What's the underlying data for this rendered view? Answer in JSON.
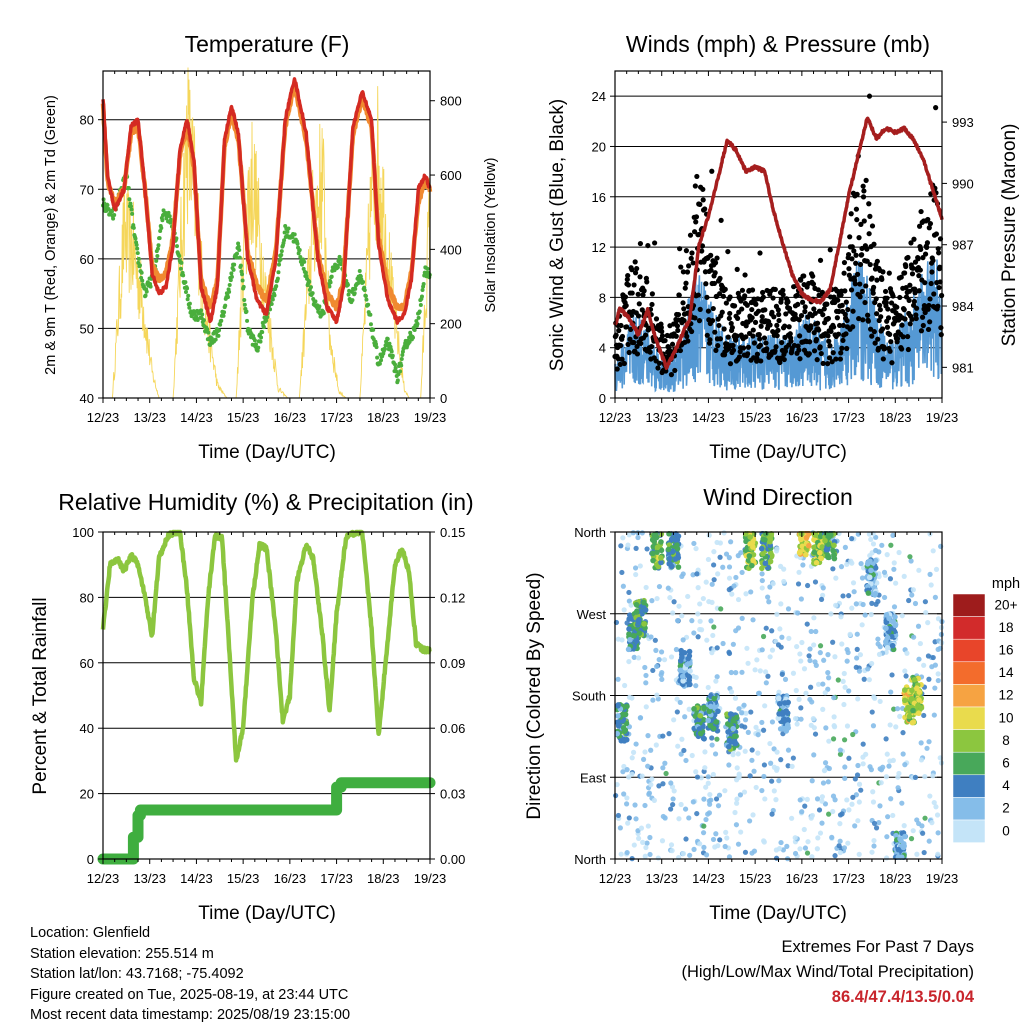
{
  "colors": {
    "temp2m": "#d42a22",
    "temp9m": "#f08a30",
    "dewpoint": "#4aae3c",
    "solar": "#f5d65a",
    "sonic": "#5599d4",
    "gust": "#000000",
    "pressure": "#a51e1e",
    "rh": "#8cc63f",
    "precip": "#3fae3f",
    "extremes_text": "#c8252c"
  },
  "footer": {
    "location": "Location: Glenfield",
    "elevation": "Station elevation: 255.514 m",
    "latlon": "Station lat/lon: 43.7168; -75.4092",
    "created": "Figure created on Tue, 2025-08-19, at 23:44 UTC",
    "recent": "Most recent data timestamp: 2025/08/19 23:15:00",
    "extremes_title": "Extremes For Past 7 Days",
    "extremes_subtitle": "(High/Low/Max Wind/Total Precipitation)",
    "extremes_values": "86.4/47.4/13.5/0.04"
  },
  "chart_data": [
    {
      "id": "temperature",
      "type": "line",
      "title": "Temperature (F)",
      "xlabel": "Time (Day/UTC)",
      "ylabel": "2m & 9m T (Red, Orange) & 2m Td (Green)",
      "y2label": "Solar Insolation (Yellow)",
      "x_ticks": [
        "12/23",
        "13/23",
        "14/23",
        "15/23",
        "16/23",
        "17/23",
        "18/23",
        "19/23"
      ],
      "xlim": [
        0,
        7
      ],
      "ylim": [
        40,
        87
      ],
      "y_ticks": [
        40,
        50,
        60,
        70,
        80
      ],
      "y2lim": [
        0,
        880
      ],
      "y2_ticks": [
        0,
        200,
        400,
        600,
        800
      ],
      "grid": true,
      "series": [
        {
          "key": "t2m",
          "axis": "left",
          "x": [
            0,
            0.1,
            0.25,
            0.45,
            0.6,
            0.75,
            0.9,
            1.05,
            1.2,
            1.35,
            1.5,
            1.65,
            1.8,
            1.95,
            2.1,
            2.3,
            2.45,
            2.6,
            2.75,
            2.9,
            3.1,
            3.3,
            3.5,
            3.7,
            3.9,
            4.1,
            4.35,
            4.6,
            4.8,
            5.0,
            5.15,
            5.35,
            5.55,
            5.75,
            5.9,
            6.1,
            6.3,
            6.45,
            6.6,
            6.75,
            6.9,
            7.0
          ],
          "y": [
            83,
            72,
            67,
            70,
            79,
            80,
            70,
            58,
            55,
            56,
            62,
            76,
            80,
            74,
            56,
            51,
            56,
            77,
            82,
            78,
            60,
            54,
            52,
            60,
            80,
            86,
            78,
            60,
            53,
            51,
            56,
            79,
            84,
            80,
            62,
            54,
            51,
            52,
            57,
            70,
            72,
            70
          ]
        },
        {
          "key": "t9m",
          "axis": "left",
          "x": [
            0,
            0.1,
            0.25,
            0.45,
            0.6,
            0.75,
            0.9,
            1.05,
            1.2,
            1.35,
            1.5,
            1.65,
            1.8,
            1.95,
            2.1,
            2.3,
            2.45,
            2.6,
            2.75,
            2.9,
            3.1,
            3.3,
            3.5,
            3.7,
            3.9,
            4.1,
            4.35,
            4.6,
            4.8,
            5.0,
            5.15,
            5.35,
            5.55,
            5.75,
            5.9,
            6.1,
            6.3,
            6.45,
            6.6,
            6.75,
            6.9,
            7.0
          ],
          "y": [
            82,
            71,
            68,
            70,
            78,
            79,
            70,
            59,
            57,
            58,
            63,
            75,
            79,
            73,
            57,
            53,
            57,
            76,
            81,
            77,
            61,
            56,
            54,
            61,
            79,
            85,
            77,
            61,
            55,
            53,
            57,
            78,
            83,
            79,
            63,
            56,
            53,
            53,
            58,
            68,
            71,
            70
          ]
        },
        {
          "key": "td2m",
          "axis": "left",
          "x": [
            0,
            0.2,
            0.5,
            0.7,
            0.9,
            1.1,
            1.3,
            1.5,
            1.7,
            1.9,
            2.1,
            2.3,
            2.5,
            2.7,
            2.9,
            3.1,
            3.3,
            3.5,
            3.7,
            3.9,
            4.1,
            4.3,
            4.5,
            4.7,
            4.9,
            5.1,
            5.3,
            5.5,
            5.7,
            5.9,
            6.1,
            6.3,
            6.5,
            6.7,
            6.9,
            7.0
          ],
          "y": [
            68,
            66,
            72,
            62,
            55,
            58,
            67,
            65,
            58,
            52,
            52,
            48,
            50,
            56,
            62,
            50,
            47,
            52,
            56,
            64,
            63,
            59,
            54,
            52,
            58,
            60,
            54,
            58,
            52,
            45,
            48,
            43,
            48,
            50,
            58,
            58
          ]
        },
        {
          "key": "solar",
          "axis": "right",
          "x": [
            0,
            0.2,
            0.45,
            0.65,
            0.85,
            1.05,
            1.2,
            1.5,
            1.8,
            2.0,
            2.15,
            2.45,
            2.65,
            2.85,
            3.05,
            3.2,
            3.5,
            3.75,
            3.95,
            4.2,
            4.5,
            4.7,
            4.85,
            5.05,
            5.2,
            5.5,
            5.75,
            5.9,
            6.2,
            6.45,
            6.55,
            6.8,
            7.0
          ],
          "y": [
            0,
            0,
            520,
            460,
            300,
            80,
            0,
            0,
            840,
            600,
            300,
            40,
            0,
            0,
            560,
            700,
            300,
            30,
            0,
            0,
            560,
            700,
            200,
            20,
            0,
            0,
            640,
            760,
            300,
            30,
            0,
            0,
            600
          ]
        }
      ]
    },
    {
      "id": "winds",
      "type": "scatter",
      "title": "Winds (mph) & Pressure (mb)",
      "xlabel": "Time (Day/UTC)",
      "ylabel": "Sonic Wind & Gust (Blue, Black)",
      "y2label": "Station Pressure (Maroon)",
      "x_ticks": [
        "12/23",
        "13/23",
        "14/23",
        "15/23",
        "16/23",
        "17/23",
        "18/23",
        "19/23"
      ],
      "xlim": [
        0,
        7
      ],
      "ylim": [
        0,
        26
      ],
      "y_ticks": [
        0,
        4,
        8,
        12,
        16,
        20,
        24
      ],
      "y2lim": [
        979.5,
        995.5
      ],
      "y2_ticks": [
        981,
        984,
        987,
        990,
        993
      ],
      "grid": true,
      "wind_envelope": {
        "x": [
          0,
          0.2,
          0.4,
          0.6,
          0.8,
          1.0,
          1.2,
          1.4,
          1.6,
          1.8,
          2.0,
          2.2,
          2.4,
          2.6,
          2.8,
          3.0,
          3.2,
          3.4,
          3.6,
          3.8,
          4.0,
          4.2,
          4.4,
          4.6,
          4.8,
          5.0,
          5.2,
          5.4,
          5.6,
          5.8,
          6.0,
          6.2,
          6.4,
          6.6,
          6.8,
          7.0
        ],
        "sonic_mean": [
          2,
          3,
          4,
          4,
          3,
          2,
          2,
          3,
          5,
          6,
          5,
          4,
          3,
          3,
          3,
          3,
          3,
          3,
          3,
          3,
          4,
          4,
          3,
          3,
          3,
          5,
          7,
          6,
          4,
          3,
          3,
          4,
          5,
          6,
          7,
          6
        ],
        "gust_mean": [
          4,
          6,
          8,
          7,
          6,
          4,
          4,
          6,
          10,
          13,
          10,
          7,
          6,
          6,
          6,
          6,
          6,
          6,
          6,
          6,
          7,
          7,
          6,
          6,
          6,
          9,
          14,
          12,
          8,
          6,
          6,
          8,
          9,
          10,
          12,
          10
        ]
      },
      "series": [
        {
          "key": "pressure",
          "axis": "right",
          "x": [
            0,
            0.1,
            0.3,
            0.5,
            0.7,
            0.9,
            1.1,
            1.25,
            1.4,
            1.6,
            1.8,
            2.0,
            2.2,
            2.4,
            2.6,
            2.8,
            3.0,
            3.2,
            3.4,
            3.6,
            3.8,
            4.0,
            4.2,
            4.4,
            4.6,
            4.8,
            5.0,
            5.2,
            5.4,
            5.6,
            5.8,
            6.0,
            6.2,
            6.4,
            6.6,
            6.8,
            7.0
          ],
          "y": [
            983,
            983.9,
            983.4,
            982.6,
            983.8,
            982.2,
            981,
            981.6,
            982.4,
            983.4,
            987,
            988.4,
            990.2,
            992.1,
            991.6,
            990.6,
            990.8,
            990.6,
            988.6,
            987,
            985.5,
            984.6,
            984.3,
            984.2,
            984.8,
            987,
            989.4,
            991.3,
            993.2,
            992.2,
            992.7,
            992.5,
            992.7,
            992.1,
            991.2,
            989.7,
            988.3
          ]
        }
      ]
    },
    {
      "id": "humidity",
      "type": "line",
      "title": "Relative Humidity (%) & Precipitation (in)",
      "xlabel": "Time (Day/UTC)",
      "ylabel": "Percent & Total Rainfall",
      "x_ticks": [
        "12/23",
        "13/23",
        "14/23",
        "15/23",
        "16/23",
        "17/23",
        "18/23",
        "19/23"
      ],
      "xlim": [
        0,
        7
      ],
      "ylim": [
        0,
        100
      ],
      "y_ticks": [
        0,
        20,
        40,
        60,
        80,
        100
      ],
      "y2lim": [
        0,
        0.15
      ],
      "y2_ticks": [
        "0.00",
        "0.03",
        "0.06",
        "0.09",
        "0.12",
        "0.15"
      ],
      "grid": true,
      "series": [
        {
          "key": "rh",
          "axis": "left",
          "x": [
            0,
            0.15,
            0.3,
            0.45,
            0.6,
            0.75,
            0.9,
            1.05,
            1.2,
            1.4,
            1.55,
            1.65,
            1.8,
            1.95,
            2.1,
            2.25,
            2.4,
            2.55,
            2.7,
            2.85,
            3.0,
            3.2,
            3.35,
            3.5,
            3.7,
            3.85,
            4.0,
            4.15,
            4.35,
            4.5,
            4.7,
            4.85,
            5.0,
            5.2,
            5.4,
            5.55,
            5.75,
            5.9,
            6.05,
            6.25,
            6.4,
            6.55,
            6.7,
            6.85,
            7.0
          ],
          "y": [
            70,
            90,
            92,
            88,
            93,
            90,
            80,
            68,
            92,
            99,
            100,
            100,
            82,
            55,
            48,
            80,
            99,
            98,
            65,
            30,
            40,
            80,
            96,
            95,
            70,
            42,
            50,
            85,
            96,
            92,
            68,
            45,
            75,
            98,
            100,
            100,
            70,
            38,
            60,
            90,
            95,
            88,
            66,
            64,
            64
          ]
        },
        {
          "key": "precip",
          "axis": "right",
          "x": [
            0,
            0.65,
            0.65,
            0.75,
            0.75,
            0.8,
            0.8,
            5.0,
            5.0,
            5.1,
            5.1,
            7.0
          ],
          "y": [
            0,
            0,
            0.01,
            0.01,
            0.02,
            0.02,
            0.0225,
            0.0225,
            0.033,
            0.033,
            0.035,
            0.035
          ]
        }
      ]
    },
    {
      "id": "wind_direction",
      "type": "scatter",
      "title": "Wind Direction",
      "xlabel": "Time (Day/UTC)",
      "ylabel": "Direction (Colored By Speed)",
      "x_ticks": [
        "12/23",
        "13/23",
        "14/23",
        "15/23",
        "16/23",
        "17/23",
        "18/23",
        "19/23"
      ],
      "xlim": [
        0,
        7
      ],
      "ylim": [
        0,
        360
      ],
      "y_ticks": [
        0,
        90,
        180,
        270,
        360
      ],
      "y_tick_labels": [
        "North",
        "East",
        "South",
        "West",
        "North"
      ],
      "grid": true,
      "legend": {
        "title": "mph",
        "placement": "right",
        "labels": [
          "20+",
          "18",
          "16",
          "14",
          "12",
          "10",
          "8",
          "6",
          "4",
          "2",
          "0"
        ],
        "colors": [
          "#9e1c1c",
          "#d22b2b",
          "#e8452a",
          "#f36c2c",
          "#f6a342",
          "#e9db4d",
          "#8cc63f",
          "#48a85a",
          "#3f7fc1",
          "#85bde9",
          "#c4e4f8"
        ]
      },
      "clusters": [
        {
          "x": 0.15,
          "dir": 150,
          "speed": 5
        },
        {
          "x": 0.4,
          "dir": 250,
          "speed": 5
        },
        {
          "x": 0.55,
          "dir": 265,
          "speed": 6
        },
        {
          "x": 0.9,
          "dir": 340,
          "speed": 7
        },
        {
          "x": 1.25,
          "dir": 340,
          "speed": 5
        },
        {
          "x": 1.5,
          "dir": 210,
          "speed": 3
        },
        {
          "x": 1.8,
          "dir": 150,
          "speed": 5
        },
        {
          "x": 2.1,
          "dir": 160,
          "speed": 4
        },
        {
          "x": 2.5,
          "dir": 140,
          "speed": 5
        },
        {
          "x": 2.9,
          "dir": 340,
          "speed": 8
        },
        {
          "x": 3.25,
          "dir": 340,
          "speed": 6
        },
        {
          "x": 3.6,
          "dir": 160,
          "speed": 3
        },
        {
          "x": 4.05,
          "dir": 355,
          "speed": 10
        },
        {
          "x": 4.35,
          "dir": 345,
          "speed": 8
        },
        {
          "x": 4.6,
          "dir": 350,
          "speed": 6
        },
        {
          "x": 5.5,
          "dir": 310,
          "speed": 3
        },
        {
          "x": 5.9,
          "dir": 250,
          "speed": 3
        },
        {
          "x": 6.3,
          "dir": 170,
          "speed": 9
        },
        {
          "x": 6.45,
          "dir": 180,
          "speed": 8
        },
        {
          "x": 6.1,
          "dir": 10,
          "speed": 3
        }
      ]
    }
  ]
}
